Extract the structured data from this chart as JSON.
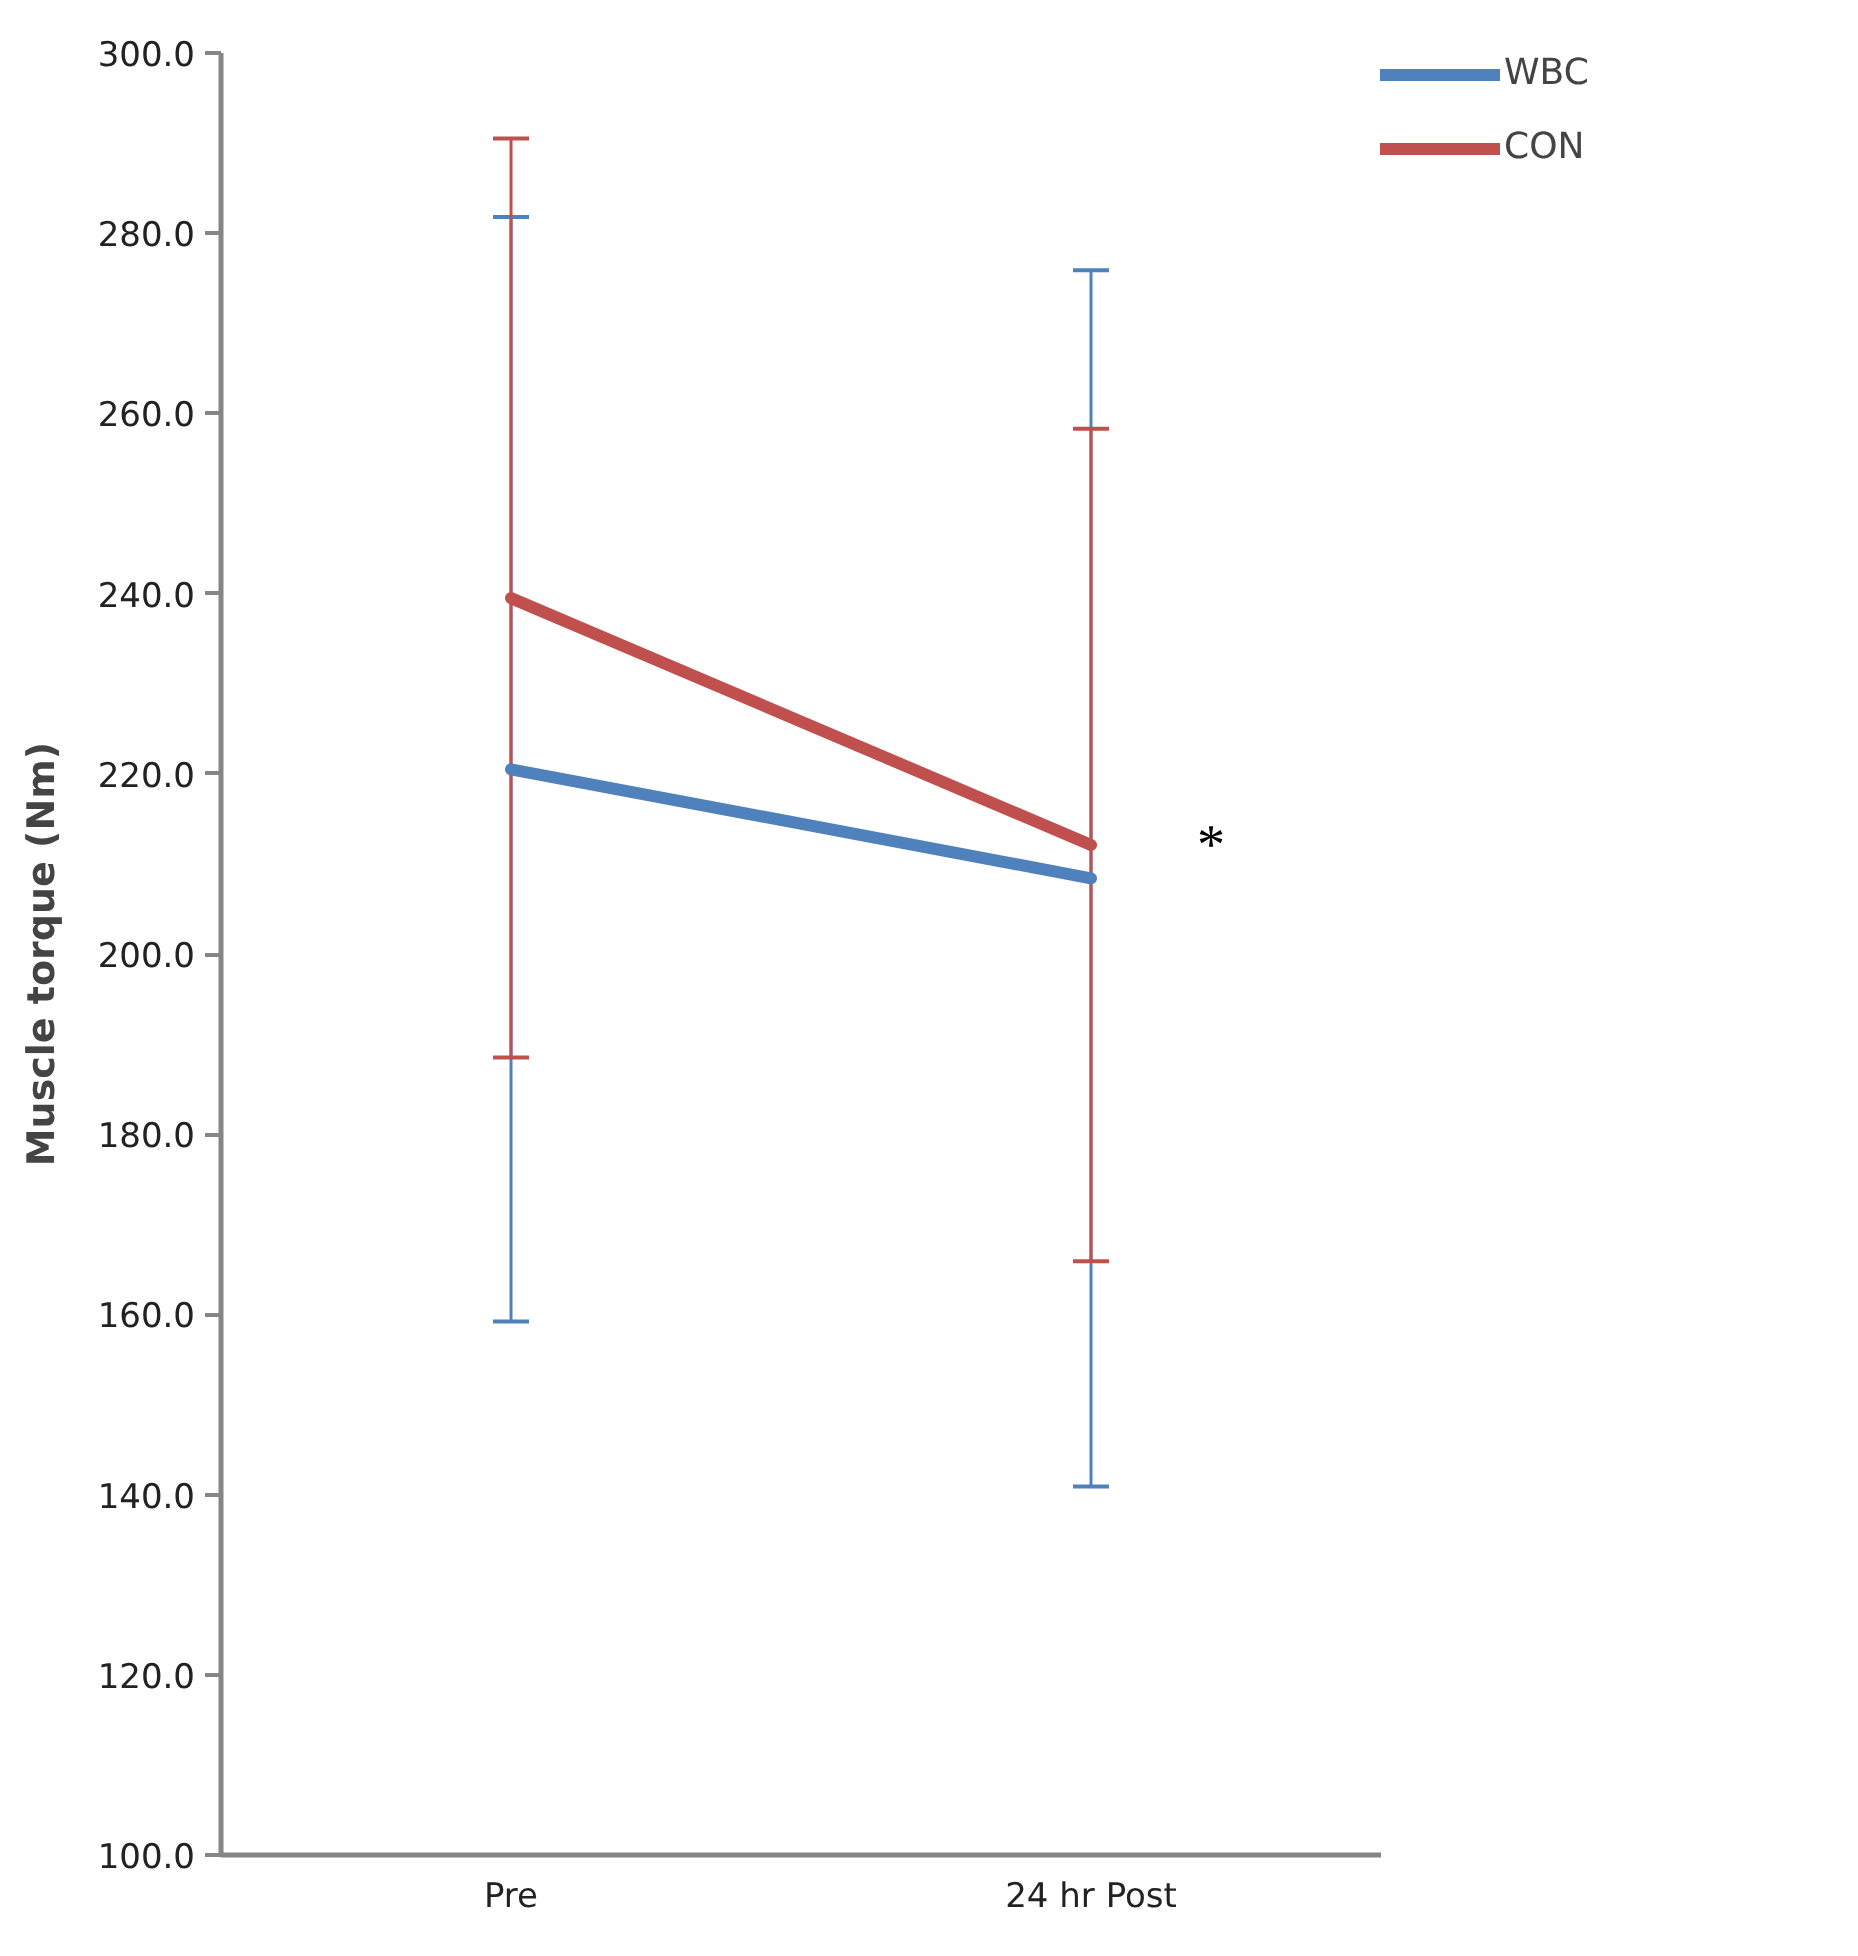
{
  "chart_data": {
    "type": "line",
    "ylabel": "Muscle torque (Nm)",
    "categories": [
      "Pre",
      "24 hr Post"
    ],
    "series": [
      {
        "name": "WBC",
        "color": "#4f81bd",
        "values": [
          220.5,
          208.4
        ],
        "errors": [
          61.3,
          67.5
        ]
      },
      {
        "name": "CON",
        "color": "#c0504d",
        "values": [
          239.5,
          212.1
        ],
        "errors": [
          51.0,
          46.2
        ]
      }
    ],
    "ylim": [
      100,
      300
    ],
    "yticks": [
      {
        "value": 100,
        "label": "100.0"
      },
      {
        "value": 120,
        "label": "120.0"
      },
      {
        "value": 140,
        "label": "140.0"
      },
      {
        "value": 160,
        "label": "160.0"
      },
      {
        "value": 180,
        "label": "180.0"
      },
      {
        "value": 200,
        "label": "200.0"
      },
      {
        "value": 220,
        "label": "220.0"
      },
      {
        "value": 240,
        "label": "240.0"
      },
      {
        "value": 260,
        "label": "260.0"
      },
      {
        "value": 280,
        "label": "280.0"
      },
      {
        "value": 300,
        "label": "300.0"
      }
    ],
    "annotations": [
      {
        "text": "*",
        "x": "24 hr Post",
        "y": 212
      }
    ],
    "grid": false,
    "legend": "top right",
    "marker": "none",
    "line_style": "solid"
  }
}
